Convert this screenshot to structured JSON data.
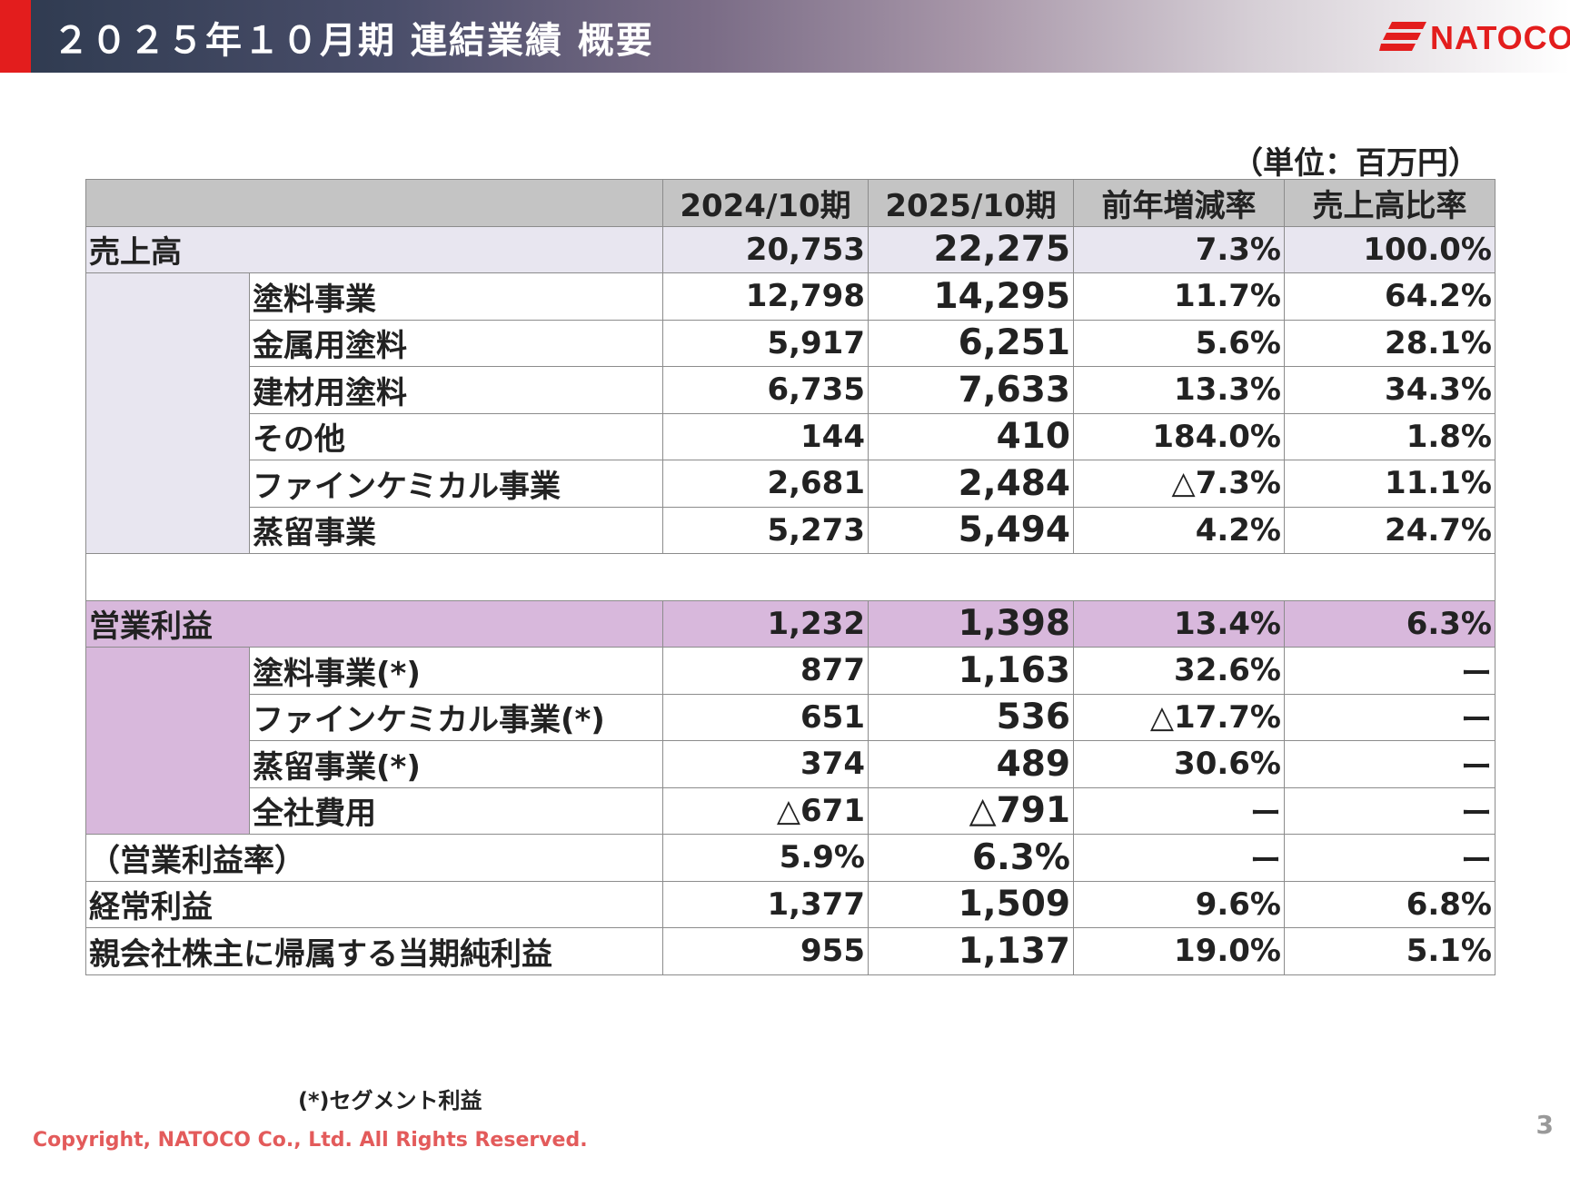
{
  "header": {
    "title": "２０２５年１０月期 連結業績 概要",
    "logo_text": "NATOCO",
    "accent_color": "#e31d1d"
  },
  "unit_note": "（単位：百万円）",
  "table": {
    "headers": [
      "",
      "2024/10期",
      "2025/10期",
      "前年増減率",
      "売上高比率"
    ],
    "sales": {
      "label": "売上高",
      "values": [
        "20,753",
        "22,275",
        "7.3%",
        "100.0%"
      ],
      "rows": [
        {
          "label": "塗料事業",
          "values": [
            "12,798",
            "14,295",
            "11.7%",
            "64.2%"
          ]
        },
        {
          "label": "金属用塗料",
          "values": [
            "5,917",
            "6,251",
            "5.6%",
            "28.1%"
          ]
        },
        {
          "label": "建材用塗料",
          "values": [
            "6,735",
            "7,633",
            "13.3%",
            "34.3%"
          ]
        },
        {
          "label": "その他",
          "values": [
            "144",
            "410",
            "184.0%",
            "1.8%"
          ]
        },
        {
          "label": "ファインケミカル事業",
          "values": [
            "2,681",
            "2,484",
            "△7.3%",
            "11.1%"
          ]
        },
        {
          "label": "蒸留事業",
          "values": [
            "5,273",
            "5,494",
            "4.2%",
            "24.7%"
          ]
        }
      ]
    },
    "operating": {
      "label": "営業利益",
      "values": [
        "1,232",
        "1,398",
        "13.4%",
        "6.3%"
      ],
      "rows": [
        {
          "label": "塗料事業(*)",
          "values": [
            "877",
            "1,163",
            "32.6%",
            "ー"
          ]
        },
        {
          "label": "ファインケミカル事業(*)",
          "values": [
            "651",
            "536",
            "△17.7%",
            "ー"
          ]
        },
        {
          "label": "蒸留事業(*)",
          "values": [
            "374",
            "489",
            "30.6%",
            "ー"
          ]
        },
        {
          "label": "全社費用",
          "values": [
            "△671",
            "△791",
            "ー",
            "ー"
          ]
        }
      ]
    },
    "bottom_rows": [
      {
        "label": "（営業利益率）",
        "values": [
          "5.9%",
          "6.3%",
          "ー",
          "ー"
        ]
      },
      {
        "label": "経常利益",
        "values": [
          "1,377",
          "1,509",
          "9.6%",
          "6.8%"
        ]
      },
      {
        "label": "親会社株主に帰属する当期純利益",
        "values": [
          "955",
          "1,137",
          "19.0%",
          "5.1%"
        ]
      }
    ]
  },
  "footnote": "(*)セグメント利益",
  "copyright": "Copyright, NATOCO Co., Ltd. All Rights Reserved.",
  "page_number": "3"
}
